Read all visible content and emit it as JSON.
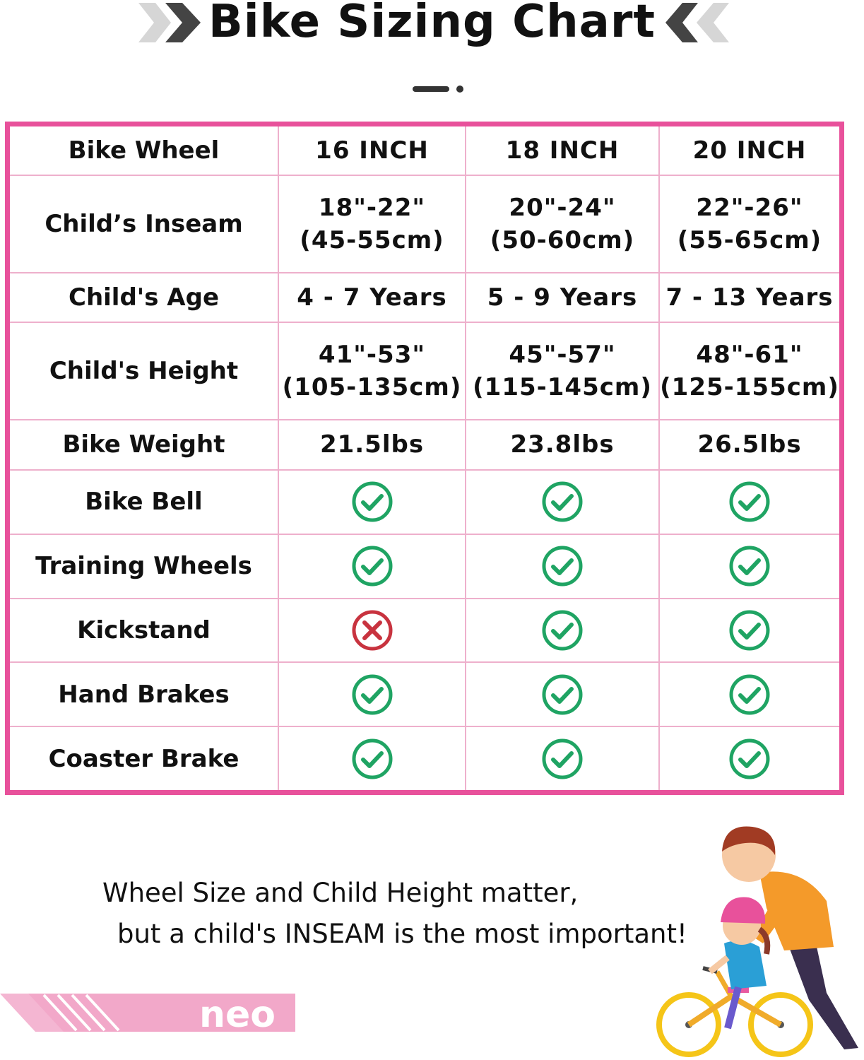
{
  "header": {
    "title": "Bike Sizing Chart"
  },
  "table": {
    "columns": [
      "Bike Wheel",
      "16 INCH",
      "18 INCH",
      "20 INCH"
    ],
    "rows": [
      {
        "label": "Child’s Inseam",
        "cells": [
          {
            "type": "text",
            "line1": "18\"-22\"",
            "line2": "(45-55cm)"
          },
          {
            "type": "text",
            "line1": "20\"-24\"",
            "line2": "(50-60cm)"
          },
          {
            "type": "text",
            "line1": "22\"-26\"",
            "line2": "(55-65cm)"
          }
        ]
      },
      {
        "label": "Child's Age",
        "cells": [
          {
            "type": "text",
            "line1": "4 - 7 Years"
          },
          {
            "type": "text",
            "line1": "5 - 9 Years"
          },
          {
            "type": "text",
            "line1": "7 - 13 Years"
          }
        ]
      },
      {
        "label": "Child's Height",
        "cells": [
          {
            "type": "text",
            "line1": "41\"-53\"",
            "line2": "(105-135cm)"
          },
          {
            "type": "text",
            "line1": "45\"-57\"",
            "line2": "(115-145cm)"
          },
          {
            "type": "text",
            "line1": "48\"-61\"",
            "line2": "(125-155cm)"
          }
        ]
      },
      {
        "label": "Bike Weight",
        "cells": [
          {
            "type": "text",
            "line1": "21.5lbs"
          },
          {
            "type": "text",
            "line1": "23.8lbs"
          },
          {
            "type": "text",
            "line1": "26.5lbs"
          }
        ]
      },
      {
        "label": "Bike Bell",
        "cells": [
          {
            "type": "icon",
            "icon": "check-icon"
          },
          {
            "type": "icon",
            "icon": "check-icon"
          },
          {
            "type": "icon",
            "icon": "check-icon"
          }
        ]
      },
      {
        "label": "Training Wheels",
        "cells": [
          {
            "type": "icon",
            "icon": "check-icon"
          },
          {
            "type": "icon",
            "icon": "check-icon"
          },
          {
            "type": "icon",
            "icon": "check-icon"
          }
        ]
      },
      {
        "label": "Kickstand",
        "cells": [
          {
            "type": "icon",
            "icon": "cross-icon"
          },
          {
            "type": "icon",
            "icon": "check-icon"
          },
          {
            "type": "icon",
            "icon": "check-icon"
          }
        ]
      },
      {
        "label": "Hand Brakes",
        "cells": [
          {
            "type": "icon",
            "icon": "check-icon"
          },
          {
            "type": "icon",
            "icon": "check-icon"
          },
          {
            "type": "icon",
            "icon": "check-icon"
          }
        ]
      },
      {
        "label": "Coaster Brake",
        "cells": [
          {
            "type": "icon",
            "icon": "check-icon"
          },
          {
            "type": "icon",
            "icon": "check-icon"
          },
          {
            "type": "icon",
            "icon": "check-icon"
          }
        ]
      }
    ]
  },
  "tagline": {
    "line1": "Wheel Size and Child Height matter,",
    "line2": "but a child's INSEAM is the most important!"
  },
  "brand": {
    "logo_text": "neo"
  },
  "colors": {
    "frame": "#e8519b",
    "grid": "#eeb0cc",
    "check": "#1fa463",
    "cross": "#c8333f",
    "banner": "#f2a8c9"
  }
}
